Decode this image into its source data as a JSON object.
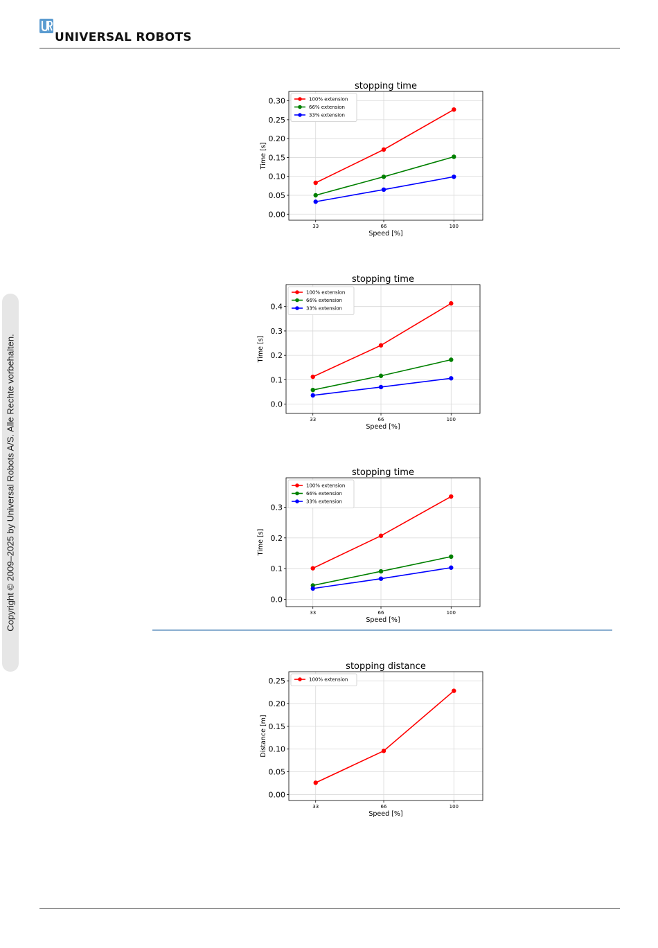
{
  "header": {
    "brand": "UNIVERSAL ROBOTS",
    "logo_icon": "ur-logo-icon"
  },
  "sidebar": {
    "copyright": "Copyright © 2009–2025 by Universal Robots A/S. Alle Rechte vorbehalten."
  },
  "chart_data": [
    {
      "type": "line",
      "title": "stopping time",
      "xlabel": "Speed [%]",
      "ylabel": "Time [s]",
      "x": [
        33,
        66,
        100
      ],
      "xlim": [
        20,
        114
      ],
      "ylim": [
        -0.016,
        0.325
      ],
      "yticks": [
        0.0,
        0.05,
        0.1,
        0.15,
        0.2,
        0.25,
        0.3
      ],
      "yformat": 2,
      "grid": true,
      "legend": "top-left",
      "series": [
        {
          "name": "100% extension",
          "color": "#ff0000",
          "values": [
            0.083,
            0.171,
            0.277
          ]
        },
        {
          "name": "66% extension",
          "color": "#008000",
          "values": [
            0.05,
            0.099,
            0.152
          ]
        },
        {
          "name": "33% extension",
          "color": "#0000ff",
          "values": [
            0.033,
            0.065,
            0.099
          ]
        }
      ]
    },
    {
      "type": "line",
      "title": "stopping time",
      "xlabel": "Speed [%]",
      "ylabel": "Time [s]",
      "x": [
        33,
        66,
        100
      ],
      "xlim": [
        20,
        114
      ],
      "ylim": [
        -0.038,
        0.49
      ],
      "yticks": [
        0.0,
        0.1,
        0.2,
        0.3,
        0.4
      ],
      "yformat": 1,
      "grid": true,
      "legend": "top-left",
      "series": [
        {
          "name": "100% extension",
          "color": "#ff0000",
          "values": [
            0.112,
            0.241,
            0.413
          ]
        },
        {
          "name": "66% extension",
          "color": "#008000",
          "values": [
            0.058,
            0.116,
            0.182
          ]
        },
        {
          "name": "33% extension",
          "color": "#0000ff",
          "values": [
            0.036,
            0.07,
            0.106
          ]
        }
      ]
    },
    {
      "type": "line",
      "title": "stopping time",
      "xlabel": "Speed [%]",
      "ylabel": "Time [s]",
      "x": [
        33,
        66,
        100
      ],
      "xlim": [
        20,
        114
      ],
      "ylim": [
        -0.024,
        0.396
      ],
      "yticks": [
        0.0,
        0.1,
        0.2,
        0.3
      ],
      "yformat": 1,
      "grid": true,
      "legend": "top-left",
      "series": [
        {
          "name": "100% extension",
          "color": "#ff0000",
          "values": [
            0.101,
            0.207,
            0.335
          ]
        },
        {
          "name": "66% extension",
          "color": "#008000",
          "values": [
            0.045,
            0.091,
            0.139
          ]
        },
        {
          "name": "33% extension",
          "color": "#0000ff",
          "values": [
            0.035,
            0.067,
            0.103
          ]
        }
      ]
    },
    {
      "type": "line",
      "title": "stopping distance",
      "xlabel": "Speed [%]",
      "ylabel": "Distance [m]",
      "x": [
        33,
        66,
        100
      ],
      "xlim": [
        20,
        114
      ],
      "ylim": [
        -0.013,
        0.27
      ],
      "yticks": [
        0.0,
        0.05,
        0.1,
        0.15,
        0.2,
        0.25
      ],
      "yformat": 2,
      "grid": true,
      "legend": "top-left",
      "series": [
        {
          "name": "100% extension",
          "color": "#ff0000",
          "values": [
            0.026,
            0.096,
            0.228
          ]
        }
      ]
    }
  ]
}
